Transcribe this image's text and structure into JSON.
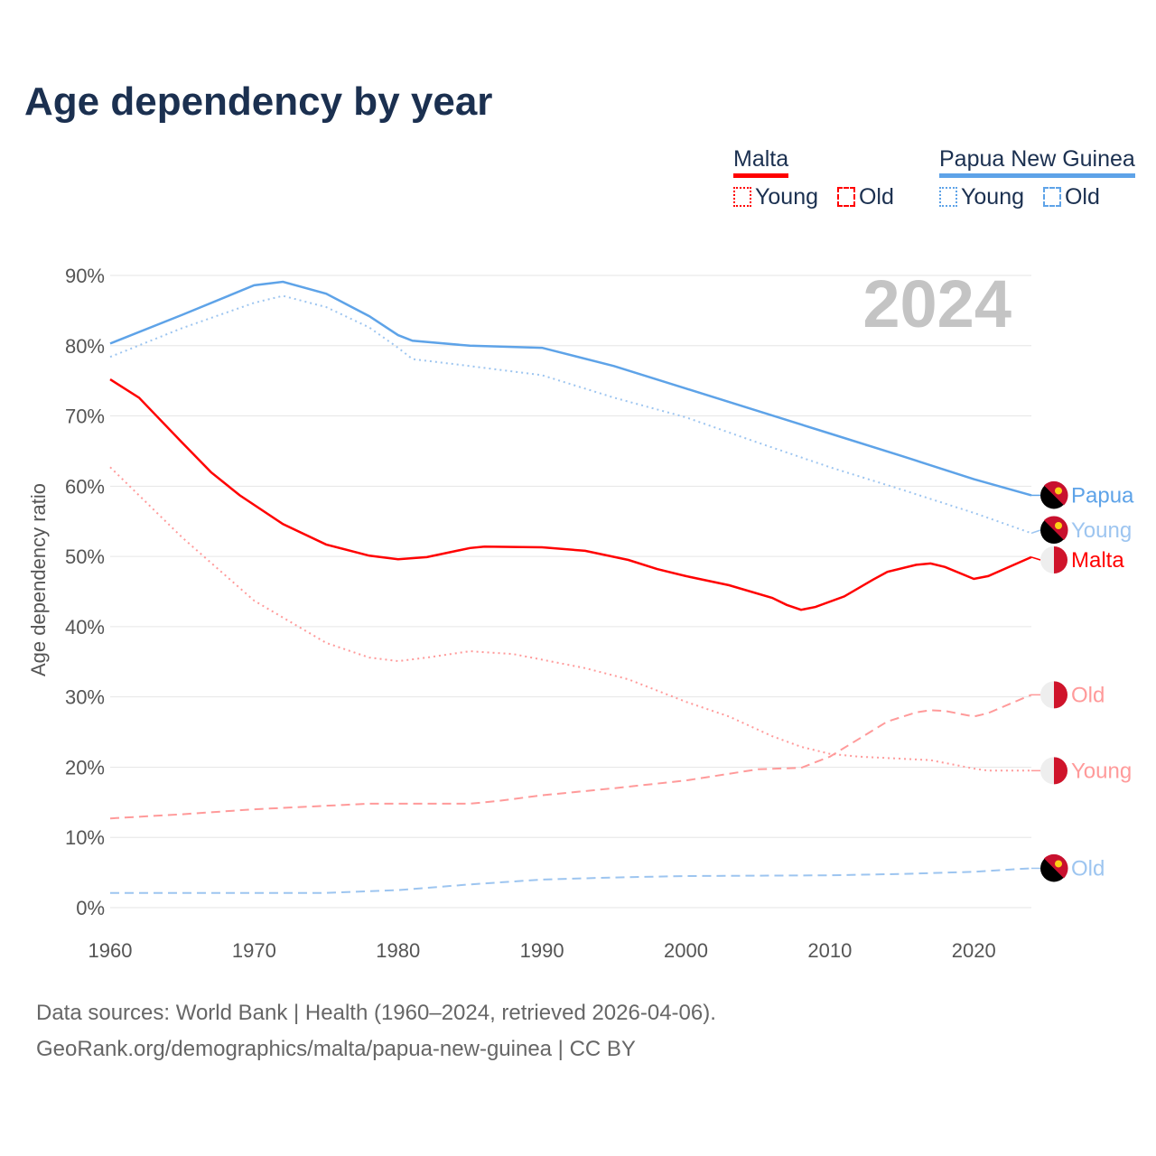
{
  "title": "Age dependency by year",
  "legend": {
    "malta": {
      "label": "Malta",
      "young": "Young",
      "old": "Old"
    },
    "png": {
      "label": "Papua New Guinea",
      "young": "Young",
      "old": "Old"
    }
  },
  "colors": {
    "malta": "#ff0000",
    "malta_light": "#ff9a9a",
    "png": "#5ea3e8",
    "png_light": "#9dc5f0"
  },
  "year_label": "2024",
  "footer": {
    "line1": "Data sources: World Bank | Health (1960–2024, retrieved 2026-04-06).",
    "line2": "GeoRank.org/demographics/malta/papua-new-guinea | CC BY"
  },
  "chart_data": {
    "type": "line",
    "title": "Age dependency by year",
    "xlabel": "",
    "ylabel": "Age dependency ratio",
    "xlim": [
      1960,
      2024
    ],
    "ylim": [
      0,
      90
    ],
    "xticks": [
      "1960",
      "1970",
      "1980",
      "1990",
      "2000",
      "2010",
      "2020"
    ],
    "yticks": [
      "0%",
      "10%",
      "20%",
      "30%",
      "40%",
      "50%",
      "60%",
      "70%",
      "80%",
      "90%"
    ],
    "series": [
      {
        "name": "Papua New Guinea",
        "end_label": "Papua",
        "color": "png",
        "dash": "",
        "points": [
          [
            1960,
            80.3
          ],
          [
            1965,
            84.4
          ],
          [
            1970,
            88.6
          ],
          [
            1972,
            89.1
          ],
          [
            1975,
            87.4
          ],
          [
            1978,
            84.2
          ],
          [
            1980,
            81.5
          ],
          [
            1981,
            80.7
          ],
          [
            1985,
            80
          ],
          [
            1990,
            79.7
          ],
          [
            1995,
            77.1
          ],
          [
            2000,
            73.9
          ],
          [
            2005,
            70.7
          ],
          [
            2010,
            67.5
          ],
          [
            2015,
            64.3
          ],
          [
            2020,
            61
          ],
          [
            2024,
            58.7
          ]
        ]
      },
      {
        "name": "Papua New Guinea Young",
        "end_label": "Young",
        "color": "png_light",
        "dash": "2,4",
        "points": [
          [
            1960,
            78.4
          ],
          [
            1965,
            82.5
          ],
          [
            1970,
            86.1
          ],
          [
            1972,
            87.1
          ],
          [
            1975,
            85.5
          ],
          [
            1978,
            82.6
          ],
          [
            1980,
            79.7
          ],
          [
            1981,
            78.1
          ],
          [
            1985,
            77.1
          ],
          [
            1990,
            75.8
          ],
          [
            1995,
            72.6
          ],
          [
            2000,
            69.8
          ],
          [
            2005,
            66.2
          ],
          [
            2010,
            62.7
          ],
          [
            2015,
            59.5
          ],
          [
            2020,
            56.2
          ],
          [
            2024,
            53.3
          ]
        ]
      },
      {
        "name": "Malta",
        "end_label": "Malta",
        "color": "malta",
        "dash": "",
        "points": [
          [
            1960,
            75.2
          ],
          [
            1962,
            72.6
          ],
          [
            1965,
            66.2
          ],
          [
            1967,
            62
          ],
          [
            1969,
            58.7
          ],
          [
            1972,
            54.6
          ],
          [
            1975,
            51.7
          ],
          [
            1978,
            50.1
          ],
          [
            1980,
            49.6
          ],
          [
            1982,
            49.9
          ],
          [
            1985,
            51.2
          ],
          [
            1986,
            51.4
          ],
          [
            1990,
            51.3
          ],
          [
            1993,
            50.8
          ],
          [
            1996,
            49.5
          ],
          [
            1998,
            48.2
          ],
          [
            2000,
            47.2
          ],
          [
            2003,
            45.9
          ],
          [
            2006,
            44.1
          ],
          [
            2007,
            43.1
          ],
          [
            2008,
            42.4
          ],
          [
            2009,
            42.8
          ],
          [
            2011,
            44.3
          ],
          [
            2013,
            46.7
          ],
          [
            2014,
            47.8
          ],
          [
            2016,
            48.8
          ],
          [
            2017,
            49
          ],
          [
            2018,
            48.5
          ],
          [
            2020,
            46.8
          ],
          [
            2021,
            47.2
          ],
          [
            2023,
            49
          ],
          [
            2024,
            49.9
          ]
        ]
      },
      {
        "name": "Malta Old",
        "end_label": "Old",
        "color": "malta_light",
        "dash": "10,6",
        "points": [
          [
            1960,
            12.7
          ],
          [
            1965,
            13.3
          ],
          [
            1970,
            14
          ],
          [
            1975,
            14.5
          ],
          [
            1978,
            14.8
          ],
          [
            1985,
            14.8
          ],
          [
            1987,
            15.2
          ],
          [
            1990,
            16
          ],
          [
            1995,
            17
          ],
          [
            2000,
            18.1
          ],
          [
            2005,
            19.7
          ],
          [
            2008,
            19.9
          ],
          [
            2010,
            21.5
          ],
          [
            2012,
            24
          ],
          [
            2014,
            26.5
          ],
          [
            2016,
            27.8
          ],
          [
            2017,
            28.1
          ],
          [
            2018,
            28
          ],
          [
            2020,
            27.2
          ],
          [
            2021,
            27.7
          ],
          [
            2024,
            30.3
          ]
        ]
      },
      {
        "name": "Malta Young",
        "end_label": "Young",
        "color": "malta_light",
        "dash": "2,4",
        "points": [
          [
            1960,
            62.7
          ],
          [
            1965,
            52.7
          ],
          [
            1970,
            43.7
          ],
          [
            1975,
            37.7
          ],
          [
            1978,
            35.6
          ],
          [
            1980,
            35.1
          ],
          [
            1982,
            35.6
          ],
          [
            1985,
            36.5
          ],
          [
            1988,
            36.1
          ],
          [
            1990,
            35.3
          ],
          [
            1993,
            34.1
          ],
          [
            1996,
            32.5
          ],
          [
            2000,
            29.3
          ],
          [
            2003,
            27.2
          ],
          [
            2006,
            24.4
          ],
          [
            2008,
            22.9
          ],
          [
            2010,
            21.9
          ],
          [
            2012,
            21.5
          ],
          [
            2015,
            21.2
          ],
          [
            2017,
            21
          ],
          [
            2020,
            19.8
          ],
          [
            2021,
            19.5
          ],
          [
            2024,
            19.5
          ]
        ]
      },
      {
        "name": "Papua New Guinea Old",
        "end_label": "Old",
        "color": "png_light",
        "dash": "10,6",
        "points": [
          [
            1960,
            2.1
          ],
          [
            1970,
            2.1
          ],
          [
            1975,
            2.1
          ],
          [
            1980,
            2.5
          ],
          [
            1985,
            3.3
          ],
          [
            1990,
            4
          ],
          [
            1995,
            4.3
          ],
          [
            2000,
            4.5
          ],
          [
            2010,
            4.6
          ],
          [
            2015,
            4.8
          ],
          [
            2020,
            5.1
          ],
          [
            2024,
            5.6
          ]
        ]
      }
    ]
  }
}
